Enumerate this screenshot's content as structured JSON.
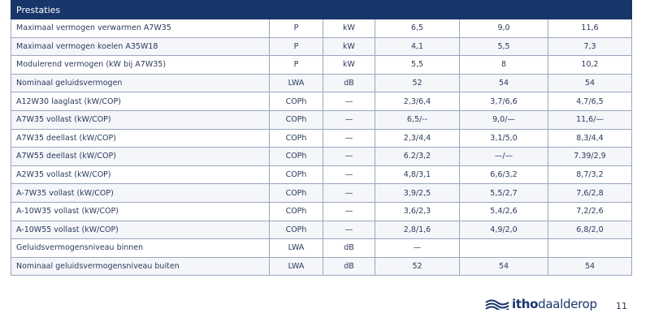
{
  "table": {
    "title": "Prestaties",
    "rows": [
      {
        "label": "Maximaal vermogen verwarmen A7W35",
        "symbol": "P",
        "unit": "kW",
        "v1": "6,5",
        "v2": "9,0",
        "v3": "11,6"
      },
      {
        "label": "Maximaal vermogen koelen A35W18",
        "symbol": "P",
        "unit": "kW",
        "v1": "4,1",
        "v2": "5,5",
        "v3": "7,3"
      },
      {
        "label": "Modulerend vermogen (kW bij A7W35)",
        "symbol": "P",
        "unit": "kW",
        "v1": "5,5",
        "v2": "8",
        "v3": "10,2"
      },
      {
        "label": "Nominaal geluidsvermogen",
        "symbol": "LWA",
        "unit": "dB",
        "v1": "52",
        "v2": "54",
        "v3": "54"
      },
      {
        "label": "A12W30 laaglast (kW/COP)",
        "symbol": "COPh",
        "unit": "—",
        "v1": "2,3/6,4",
        "v2": "3,7/6,6",
        "v3": "4,7/6,5"
      },
      {
        "label": "A7W35 vollast (kW/COP)",
        "symbol": "COPh",
        "unit": "—",
        "v1": "6,5/--",
        "v2": "9,0/—",
        "v3": "11,6/—"
      },
      {
        "label": "A7W35 deellast (kW/COP)",
        "symbol": "COPh",
        "unit": "—",
        "v1": "2,3/4,4",
        "v2": "3,1/5,0",
        "v3": "8,3/4,4"
      },
      {
        "label": "A7W55 deellast (kW/COP)",
        "symbol": "COPh",
        "unit": "—",
        "v1": "6.2/3,2",
        "v2": "—/—",
        "v3": "7.39/2,9"
      },
      {
        "label": "A2W35 vollast (kW/COP)",
        "symbol": "COPh",
        "unit": "—",
        "v1": "4,8/3,1",
        "v2": "6,6/3,2",
        "v3": "8,7/3,2"
      },
      {
        "label": "A-7W35 vollast (kW/COP)",
        "symbol": "COPh",
        "unit": "—",
        "v1": "3,9/2,5",
        "v2": "5,5/2,7",
        "v3": "7,6/2,8"
      },
      {
        "label": "A-10W35 vollast (kW/COP)",
        "symbol": "COPh",
        "unit": "—",
        "v1": "3,6/2,3",
        "v2": "5,4/2,6",
        "v3": "7,2/2,6"
      },
      {
        "label": "A-10W55 vollast (kW/COP)",
        "symbol": "COPh",
        "unit": "—",
        "v1": "2,8/1,6",
        "v2": "4,9/2,0",
        "v3": "6,8/2,0"
      },
      {
        "label": "Geluidsvermogensniveau binnen",
        "symbol": "LWA",
        "unit": "dB",
        "v1": "—",
        "v2": "",
        "v3": ""
      },
      {
        "label": "Nominaal geluidsvermogensniveau buiten",
        "symbol": "LWA",
        "unit": "dB",
        "v1": "52",
        "v2": "54",
        "v3": "54"
      }
    ]
  },
  "footer": {
    "brand_part1": "itho",
    "brand_part2": "daalderop",
    "logo_icon": "wave-logo-icon",
    "page_number": "11"
  },
  "colors": {
    "header_bg": "#19366b",
    "text": "#2b3a5a",
    "border": "#9aa6bd"
  }
}
